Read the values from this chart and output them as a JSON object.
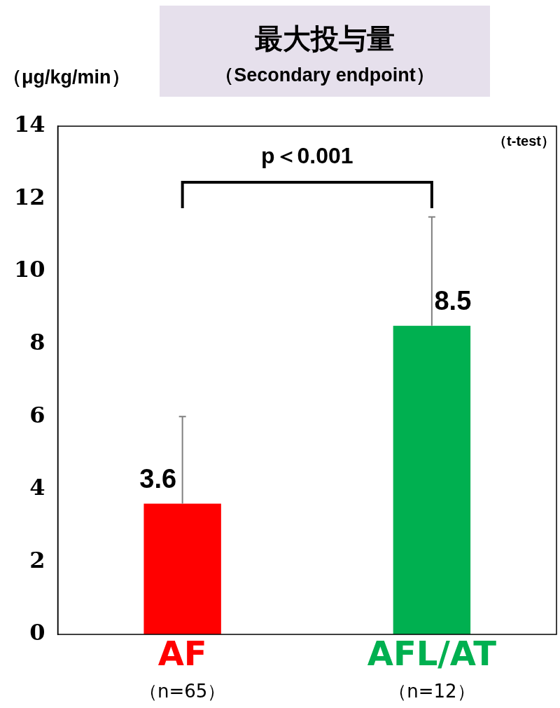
{
  "chart_data": {
    "type": "bar",
    "title": "最大投与量",
    "subtitle": "（Secondary endpoint）",
    "ylabel": "（μg/kg/min）",
    "categories": [
      "AF",
      "AFL/AT"
    ],
    "values": [
      3.6,
      8.5
    ],
    "colors": [
      "#ff0000",
      "#00b050"
    ],
    "errors": [
      [
        3.6,
        6
      ],
      [
        8.5,
        11.5
      ]
    ],
    "data_labels": true,
    "ylim": [
      0,
      14
    ],
    "yticks": [
      0,
      2,
      4,
      6,
      8,
      10,
      12,
      14
    ],
    "grid": false,
    "legend": false,
    "annotations": [
      "（n=65）",
      "（n=12）",
      "p＜0.001",
      "（t-test）"
    ]
  }
}
